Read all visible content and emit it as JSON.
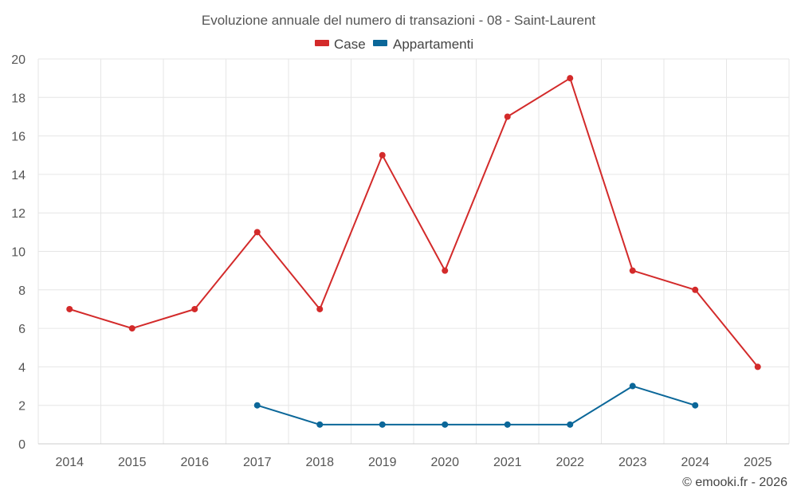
{
  "chart_data": {
    "type": "line",
    "title": "Evoluzione annuale del numero di transazioni - 08 - Saint-Laurent",
    "categories": [
      "2014",
      "2015",
      "2016",
      "2017",
      "2018",
      "2019",
      "2020",
      "2021",
      "2022",
      "2023",
      "2024",
      "2025"
    ],
    "series": [
      {
        "name": "Case",
        "color": "#d32a2a",
        "values": [
          7,
          6,
          7,
          11,
          7,
          15,
          9,
          17,
          19,
          9,
          8,
          4
        ]
      },
      {
        "name": "Appartamenti",
        "color": "#0b6799",
        "values": [
          null,
          null,
          null,
          2,
          1,
          1,
          1,
          1,
          1,
          3,
          2,
          null
        ]
      }
    ],
    "y_ticks": [
      "0",
      "2",
      "4",
      "6",
      "8",
      "10",
      "12",
      "14",
      "16",
      "18",
      "20"
    ],
    "ylim": [
      0,
      20
    ],
    "xlabel": "",
    "ylabel": "",
    "grid": true,
    "legend_position": "top-center"
  },
  "credit": "© emooki.fr - 2026"
}
